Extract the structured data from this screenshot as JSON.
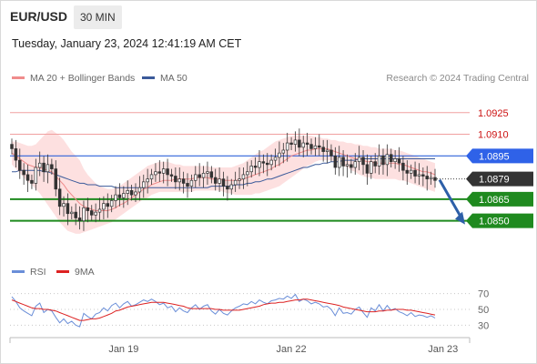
{
  "header": {
    "symbol": "EUR/USD",
    "timeframe": "30 MIN",
    "timestamp": "Tuesday, January 23, 2024 12:41:19 AM CET"
  },
  "legend": {
    "ma20_label": "MA 20 + Bollinger Bands",
    "ma50_label": "MA 50",
    "credit": "Research © 2024 Trading Central"
  },
  "rsi_legend": {
    "rsi_label": "RSI",
    "ma_label": "9MA"
  },
  "colors": {
    "ma20": "#f08c8c",
    "ma50": "#3b5a9a",
    "bollinger_fill": "#fde0e0",
    "resistance_line": "#f0a0a0",
    "pivot_line": "#2f62d9",
    "support_line": "#1e8a1e",
    "arrow": "#2d5fa8",
    "candle": "#333333",
    "rsi_line": "#6a8ed8",
    "rsi_ma_line": "#dd2222"
  },
  "chart_data": {
    "type": "candlestick",
    "price_ylim": [
      1.0834,
      1.094
    ],
    "x_ticks": [
      "Jan 19",
      "Jan 22",
      "Jan 23"
    ],
    "x_tick_index": [
      28,
      70,
      108
    ],
    "levels": [
      {
        "label": "1.0925",
        "value": 1.0925,
        "kind": "resistance"
      },
      {
        "label": "1.0910",
        "value": 1.091,
        "kind": "resistance"
      },
      {
        "label": "1.0895",
        "value": 1.0895,
        "kind": "pivot"
      },
      {
        "label": "1.0879",
        "value": 1.0879,
        "kind": "current"
      },
      {
        "label": "1.0865",
        "value": 1.0865,
        "kind": "support"
      },
      {
        "label": "1.0850",
        "value": 1.085,
        "kind": "support"
      }
    ],
    "close": [
      1.09,
      1.0892,
      1.0885,
      1.0882,
      1.0878,
      1.0876,
      1.0887,
      1.089,
      1.0884,
      1.0889,
      1.0886,
      1.0872,
      1.086,
      1.0862,
      1.0855,
      1.0856,
      1.0852,
      1.085,
      1.0859,
      1.0857,
      1.0854,
      1.0856,
      1.0858,
      1.0862,
      1.086,
      1.0864,
      1.0868,
      1.0866,
      1.0869,
      1.0871,
      1.0868,
      1.087,
      1.0873,
      1.0877,
      1.0879,
      1.0882,
      1.0884,
      1.0883,
      1.0886,
      1.0882,
      1.0881,
      1.0877,
      1.0879,
      1.0876,
      1.0874,
      1.0878,
      1.0882,
      1.088,
      1.0883,
      1.0884,
      1.088,
      1.0876,
      1.0879,
      1.0874,
      1.0872,
      1.0875,
      1.0878,
      1.0879,
      1.0882,
      1.0884,
      1.0888,
      1.0887,
      1.0891,
      1.089,
      1.0889,
      1.0892,
      1.0894,
      1.0897,
      1.0899,
      1.0904,
      1.0903,
      1.0906,
      1.0901,
      1.0904,
      1.0903,
      1.09,
      1.0902,
      1.0901,
      1.0898,
      1.0899,
      1.0895,
      1.0887,
      1.0894,
      1.0888,
      1.0889,
      1.0887,
      1.0891,
      1.0894,
      1.0889,
      1.0883,
      1.0891,
      1.0888,
      1.0895,
      1.0889,
      1.0896,
      1.0891,
      1.0893,
      1.089,
      1.0885,
      1.0883,
      1.0885,
      1.0881,
      1.0882,
      1.0881,
      1.0879,
      1.088,
      1.0878
    ],
    "ma20": [
      1.0897,
      1.0895,
      1.0893,
      1.0891,
      1.0889,
      1.0888,
      1.0887,
      1.0887,
      1.0886,
      1.0885,
      1.0884,
      1.0881,
      1.0878,
      1.0875,
      1.0871,
      1.0868,
      1.0865,
      1.0862,
      1.086,
      1.0859,
      1.0858,
      1.0857,
      1.0857,
      1.0857,
      1.0857,
      1.0858,
      1.0859,
      1.0861,
      1.0862,
      1.0864,
      1.0866,
      1.0868,
      1.087,
      1.0872,
      1.0873,
      1.0875,
      1.0876,
      1.0877,
      1.0878,
      1.0878,
      1.0878,
      1.0879,
      1.0879,
      1.0879,
      1.0879,
      1.0879,
      1.088,
      1.088,
      1.088,
      1.088,
      1.0879,
      1.0879,
      1.0879,
      1.0878,
      1.0878,
      1.0878,
      1.0878,
      1.0878,
      1.0879,
      1.088,
      1.0881,
      1.0882,
      1.0883,
      1.0884,
      1.0885,
      1.0886,
      1.0888,
      1.0889,
      1.0891,
      1.0893,
      1.0895,
      1.0896,
      1.0897,
      1.0898,
      1.0899,
      1.0899,
      1.09,
      1.09,
      1.09,
      1.09,
      1.0899,
      1.0898,
      1.0897,
      1.0896,
      1.0895,
      1.0894,
      1.0893,
      1.0893,
      1.0892,
      1.0891,
      1.0891,
      1.089,
      1.089,
      1.089,
      1.089,
      1.089,
      1.089,
      1.0889,
      1.0889,
      1.0888,
      1.0887,
      1.0886,
      1.0885,
      1.0884,
      1.0884,
      1.0883,
      1.0882
    ],
    "bb_upper": [
      1.0905,
      1.0905,
      1.0904,
      1.0903,
      1.0902,
      1.0902,
      1.0903,
      1.0906,
      1.0909,
      1.0912,
      1.0913,
      1.0911,
      1.0909,
      1.0906,
      1.0902,
      1.0898,
      1.0895,
      1.0892,
      1.0886,
      1.0882,
      1.0879,
      1.0876,
      1.0874,
      1.0873,
      1.0872,
      1.0872,
      1.0873,
      1.0874,
      1.0876,
      1.0878,
      1.088,
      1.0882,
      1.0884,
      1.0886,
      1.0888,
      1.0889,
      1.089,
      1.0891,
      1.0891,
      1.0891,
      1.089,
      1.0889,
      1.0889,
      1.0888,
      1.0888,
      1.0888,
      1.0888,
      1.0888,
      1.0888,
      1.0888,
      1.0887,
      1.0887,
      1.0887,
      1.0887,
      1.0887,
      1.0887,
      1.0888,
      1.0889,
      1.089,
      1.0892,
      1.0894,
      1.0896,
      1.0898,
      1.0899,
      1.0901,
      1.0903,
      1.0905,
      1.0906,
      1.0907,
      1.0908,
      1.0909,
      1.0909,
      1.0909,
      1.0909,
      1.0909,
      1.0909,
      1.0908,
      1.0908,
      1.0907,
      1.0907,
      1.0906,
      1.0906,
      1.0905,
      1.0905,
      1.0904,
      1.0904,
      1.0903,
      1.0903,
      1.0902,
      1.0902,
      1.0901,
      1.0901,
      1.09,
      1.09,
      1.09,
      1.09,
      1.0899,
      1.0899,
      1.0898,
      1.0897,
      1.0896,
      1.0895,
      1.0894,
      1.0893,
      1.0892,
      1.0891,
      1.089
    ],
    "bb_lower": [
      1.0889,
      1.0886,
      1.0883,
      1.088,
      1.0877,
      1.0875,
      1.0872,
      1.0869,
      1.0865,
      1.0861,
      1.0857,
      1.0853,
      1.0849,
      1.0846,
      1.0843,
      1.0842,
      1.0841,
      1.0841,
      1.0842,
      1.0843,
      1.0844,
      1.0845,
      1.0846,
      1.0847,
      1.0848,
      1.0849,
      1.0851,
      1.0853,
      1.0855,
      1.0857,
      1.0859,
      1.0861,
      1.0863,
      1.0865,
      1.0866,
      1.0868,
      1.0869,
      1.087,
      1.087,
      1.087,
      1.087,
      1.087,
      1.087,
      1.087,
      1.087,
      1.087,
      1.0871,
      1.0871,
      1.0871,
      1.0871,
      1.0871,
      1.0871,
      1.0871,
      1.087,
      1.0869,
      1.0869,
      1.0868,
      1.0868,
      1.0868,
      1.0868,
      1.0868,
      1.0869,
      1.0869,
      1.087,
      1.0871,
      1.0872,
      1.0873,
      1.0874,
      1.0876,
      1.0878,
      1.088,
      1.0882,
      1.0884,
      1.0886,
      1.0888,
      1.0889,
      1.0891,
      1.0892,
      1.0892,
      1.0892,
      1.0892,
      1.0891,
      1.089,
      1.0888,
      1.0887,
      1.0885,
      1.0884,
      1.0882,
      1.0881,
      1.088,
      1.088,
      1.0879,
      1.0879,
      1.0879,
      1.0879,
      1.0879,
      1.0879,
      1.0878,
      1.0878,
      1.0877,
      1.0876,
      1.0875,
      1.0874,
      1.0873,
      1.0872,
      1.0871,
      1.087
    ],
    "ma50": [
      1.0884,
      1.0884,
      1.0885,
      1.0885,
      1.0885,
      1.0885,
      1.0885,
      1.0885,
      1.0884,
      1.0884,
      1.0883,
      1.0882,
      1.0881,
      1.088,
      1.0879,
      1.0878,
      1.0877,
      1.0876,
      1.0876,
      1.0875,
      1.0875,
      1.0875,
      1.0874,
      1.0874,
      1.0874,
      1.0874,
      1.0873,
      1.0873,
      1.0873,
      1.0873,
      1.0873,
      1.0873,
      1.0873,
      1.0873,
      1.0873,
      1.0873,
      1.0873,
      1.0873,
      1.0873,
      1.0873,
      1.0873,
      1.0873,
      1.0873,
      1.0873,
      1.0873,
      1.0873,
      1.0873,
      1.0873,
      1.0873,
      1.0873,
      1.0874,
      1.0874,
      1.0874,
      1.0874,
      1.0874,
      1.0874,
      1.0875,
      1.0875,
      1.0875,
      1.0876,
      1.0876,
      1.0877,
      1.0877,
      1.0878,
      1.0879,
      1.0879,
      1.088,
      1.0881,
      1.0882,
      1.0883,
      1.0884,
      1.0885,
      1.0886,
      1.0887,
      1.0887,
      1.0888,
      1.0889,
      1.0889,
      1.089,
      1.089,
      1.0891,
      1.0891,
      1.0891,
      1.0892,
      1.0892,
      1.0892,
      1.0892,
      1.0893,
      1.0893,
      1.0893,
      1.0893,
      1.0893,
      1.0893,
      1.0893,
      1.0893,
      1.0893,
      1.0893,
      1.0893,
      1.0893,
      1.0893,
      1.0893,
      1.0893,
      1.0893,
      1.0893,
      1.0893,
      1.0893,
      1.0893
    ],
    "forecast_arrow": {
      "from_value": 1.0879,
      "to_value": 1.085
    },
    "rsi_ylim": [
      20,
      80
    ],
    "rsi_ticks": [
      "70",
      "50",
      "30"
    ],
    "rsi_tick_values": [
      70,
      50,
      30
    ],
    "rsi": [
      66,
      60,
      52,
      48,
      45,
      42,
      54,
      58,
      46,
      50,
      48,
      40,
      33,
      38,
      32,
      35,
      30,
      28,
      45,
      41,
      38,
      44,
      46,
      52,
      48,
      55,
      58,
      52,
      57,
      60,
      54,
      56,
      59,
      62,
      60,
      63,
      60,
      56,
      58,
      52,
      54,
      47,
      52,
      48,
      46,
      52,
      56,
      50,
      54,
      56,
      48,
      44,
      50,
      45,
      43,
      48,
      52,
      54,
      57,
      56,
      60,
      57,
      62,
      59,
      57,
      61,
      62,
      64,
      63,
      67,
      64,
      69,
      60,
      63,
      61,
      57,
      59,
      57,
      53,
      54,
      50,
      42,
      52,
      45,
      46,
      44,
      50,
      53,
      46,
      40,
      52,
      48,
      56,
      48,
      55,
      49,
      51,
      47,
      45,
      42,
      46,
      41,
      43,
      42,
      40,
      42,
      39
    ],
    "rsi_ma": [
      62,
      60,
      58,
      56,
      54,
      52,
      51,
      51,
      50,
      50,
      49,
      48,
      46,
      44,
      42,
      40,
      38,
      36,
      36,
      37,
      38,
      38,
      39,
      41,
      43,
      45,
      48,
      49,
      51,
      53,
      54,
      55,
      56,
      57,
      58,
      59,
      59,
      59,
      59,
      58,
      57,
      56,
      55,
      54,
      52,
      51,
      51,
      51,
      51,
      51,
      51,
      50,
      50,
      49,
      49,
      49,
      49,
      49,
      50,
      51,
      52,
      53,
      54,
      56,
      57,
      58,
      58,
      59,
      59,
      60,
      61,
      62,
      62,
      63,
      63,
      62,
      61,
      60,
      59,
      58,
      57,
      56,
      55,
      53,
      52,
      51,
      50,
      49,
      48,
      47,
      47,
      47,
      48,
      48,
      49,
      49,
      50,
      50,
      50,
      49,
      49,
      48,
      47,
      46,
      45,
      44,
      43
    ]
  }
}
